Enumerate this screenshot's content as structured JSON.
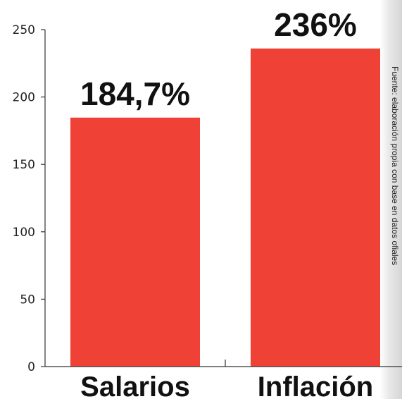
{
  "chart_data": {
    "type": "bar",
    "categories": [
      "Salarios",
      "Inflación"
    ],
    "values": [
      184.7,
      236
    ],
    "data_labels": [
      "184,7%",
      "236%"
    ],
    "ylim": [
      0,
      250
    ],
    "yticks": [
      0,
      50,
      100,
      150,
      200,
      250
    ],
    "bar_color": "#ef4136",
    "grid": false,
    "legend": "none",
    "source_note": "Fuente: elaboración propia con base en datos ofiales"
  }
}
